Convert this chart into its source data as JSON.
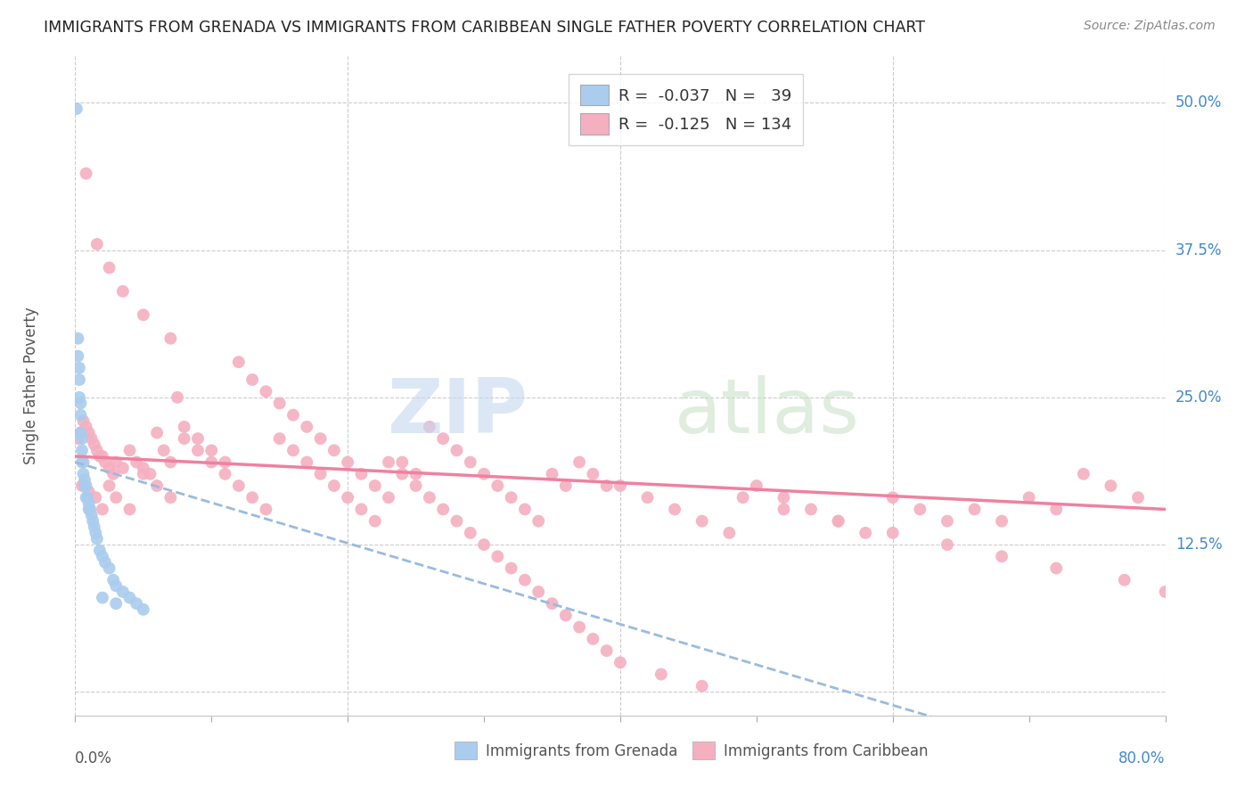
{
  "title": "IMMIGRANTS FROM GRENADA VS IMMIGRANTS FROM CARIBBEAN SINGLE FATHER POVERTY CORRELATION CHART",
  "source": "Source: ZipAtlas.com",
  "ylabel": "Single Father Poverty",
  "xlim": [
    0.0,
    0.8
  ],
  "ylim": [
    -0.02,
    0.54
  ],
  "color_grenada": "#aaccee",
  "color_caribbean": "#f4b0c0",
  "color_line_grenada": "#99bbdd",
  "color_line_caribbean": "#f080a0",
  "background_color": "#ffffff",
  "grenada_x": [
    0.001,
    0.002,
    0.002,
    0.003,
    0.003,
    0.003,
    0.004,
    0.004,
    0.004,
    0.005,
    0.005,
    0.005,
    0.006,
    0.006,
    0.007,
    0.007,
    0.008,
    0.008,
    0.009,
    0.01,
    0.01,
    0.011,
    0.012,
    0.013,
    0.014,
    0.015,
    0.016,
    0.018,
    0.02,
    0.022,
    0.025,
    0.028,
    0.03,
    0.035,
    0.04,
    0.045,
    0.05,
    0.03,
    0.02
  ],
  "grenada_y": [
    0.495,
    0.3,
    0.285,
    0.275,
    0.265,
    0.25,
    0.245,
    0.235,
    0.22,
    0.215,
    0.205,
    0.195,
    0.195,
    0.185,
    0.18,
    0.175,
    0.175,
    0.165,
    0.165,
    0.16,
    0.155,
    0.155,
    0.15,
    0.145,
    0.14,
    0.135,
    0.13,
    0.12,
    0.115,
    0.11,
    0.105,
    0.095,
    0.09,
    0.085,
    0.08,
    0.075,
    0.07,
    0.075,
    0.08
  ],
  "caribbean_x": [
    0.002,
    0.004,
    0.006,
    0.008,
    0.01,
    0.012,
    0.014,
    0.016,
    0.018,
    0.02,
    0.022,
    0.025,
    0.028,
    0.03,
    0.035,
    0.04,
    0.045,
    0.05,
    0.055,
    0.06,
    0.065,
    0.07,
    0.075,
    0.08,
    0.09,
    0.1,
    0.11,
    0.12,
    0.13,
    0.14,
    0.15,
    0.16,
    0.17,
    0.18,
    0.19,
    0.2,
    0.21,
    0.22,
    0.23,
    0.24,
    0.25,
    0.26,
    0.27,
    0.28,
    0.29,
    0.3,
    0.31,
    0.32,
    0.33,
    0.34,
    0.35,
    0.36,
    0.37,
    0.38,
    0.39,
    0.4,
    0.42,
    0.44,
    0.46,
    0.48,
    0.5,
    0.52,
    0.54,
    0.56,
    0.58,
    0.6,
    0.62,
    0.64,
    0.66,
    0.68,
    0.7,
    0.72,
    0.74,
    0.76,
    0.78,
    0.005,
    0.01,
    0.015,
    0.02,
    0.025,
    0.03,
    0.04,
    0.05,
    0.06,
    0.07,
    0.08,
    0.09,
    0.1,
    0.11,
    0.12,
    0.13,
    0.14,
    0.15,
    0.16,
    0.17,
    0.18,
    0.19,
    0.2,
    0.21,
    0.22,
    0.23,
    0.24,
    0.25,
    0.26,
    0.27,
    0.28,
    0.29,
    0.3,
    0.31,
    0.32,
    0.33,
    0.34,
    0.35,
    0.36,
    0.37,
    0.38,
    0.39,
    0.4,
    0.43,
    0.46,
    0.49,
    0.52,
    0.56,
    0.6,
    0.64,
    0.68,
    0.72,
    0.77,
    0.8,
    0.008,
    0.016,
    0.025,
    0.035,
    0.05,
    0.07
  ],
  "caribbean_y": [
    0.215,
    0.22,
    0.23,
    0.225,
    0.22,
    0.215,
    0.21,
    0.205,
    0.2,
    0.2,
    0.195,
    0.19,
    0.185,
    0.195,
    0.19,
    0.205,
    0.195,
    0.19,
    0.185,
    0.22,
    0.205,
    0.195,
    0.25,
    0.225,
    0.215,
    0.205,
    0.195,
    0.28,
    0.265,
    0.255,
    0.245,
    0.235,
    0.225,
    0.215,
    0.205,
    0.195,
    0.185,
    0.175,
    0.165,
    0.195,
    0.185,
    0.225,
    0.215,
    0.205,
    0.195,
    0.185,
    0.175,
    0.165,
    0.155,
    0.145,
    0.185,
    0.175,
    0.195,
    0.185,
    0.175,
    0.175,
    0.165,
    0.155,
    0.145,
    0.135,
    0.175,
    0.165,
    0.155,
    0.145,
    0.135,
    0.165,
    0.155,
    0.145,
    0.155,
    0.145,
    0.165,
    0.155,
    0.185,
    0.175,
    0.165,
    0.175,
    0.17,
    0.165,
    0.155,
    0.175,
    0.165,
    0.155,
    0.185,
    0.175,
    0.165,
    0.215,
    0.205,
    0.195,
    0.185,
    0.175,
    0.165,
    0.155,
    0.215,
    0.205,
    0.195,
    0.185,
    0.175,
    0.165,
    0.155,
    0.145,
    0.195,
    0.185,
    0.175,
    0.165,
    0.155,
    0.145,
    0.135,
    0.125,
    0.115,
    0.105,
    0.095,
    0.085,
    0.075,
    0.065,
    0.055,
    0.045,
    0.035,
    0.025,
    0.015,
    0.005,
    0.165,
    0.155,
    0.145,
    0.135,
    0.125,
    0.115,
    0.105,
    0.095,
    0.085,
    0.44,
    0.38,
    0.36,
    0.34,
    0.32,
    0.3
  ]
}
